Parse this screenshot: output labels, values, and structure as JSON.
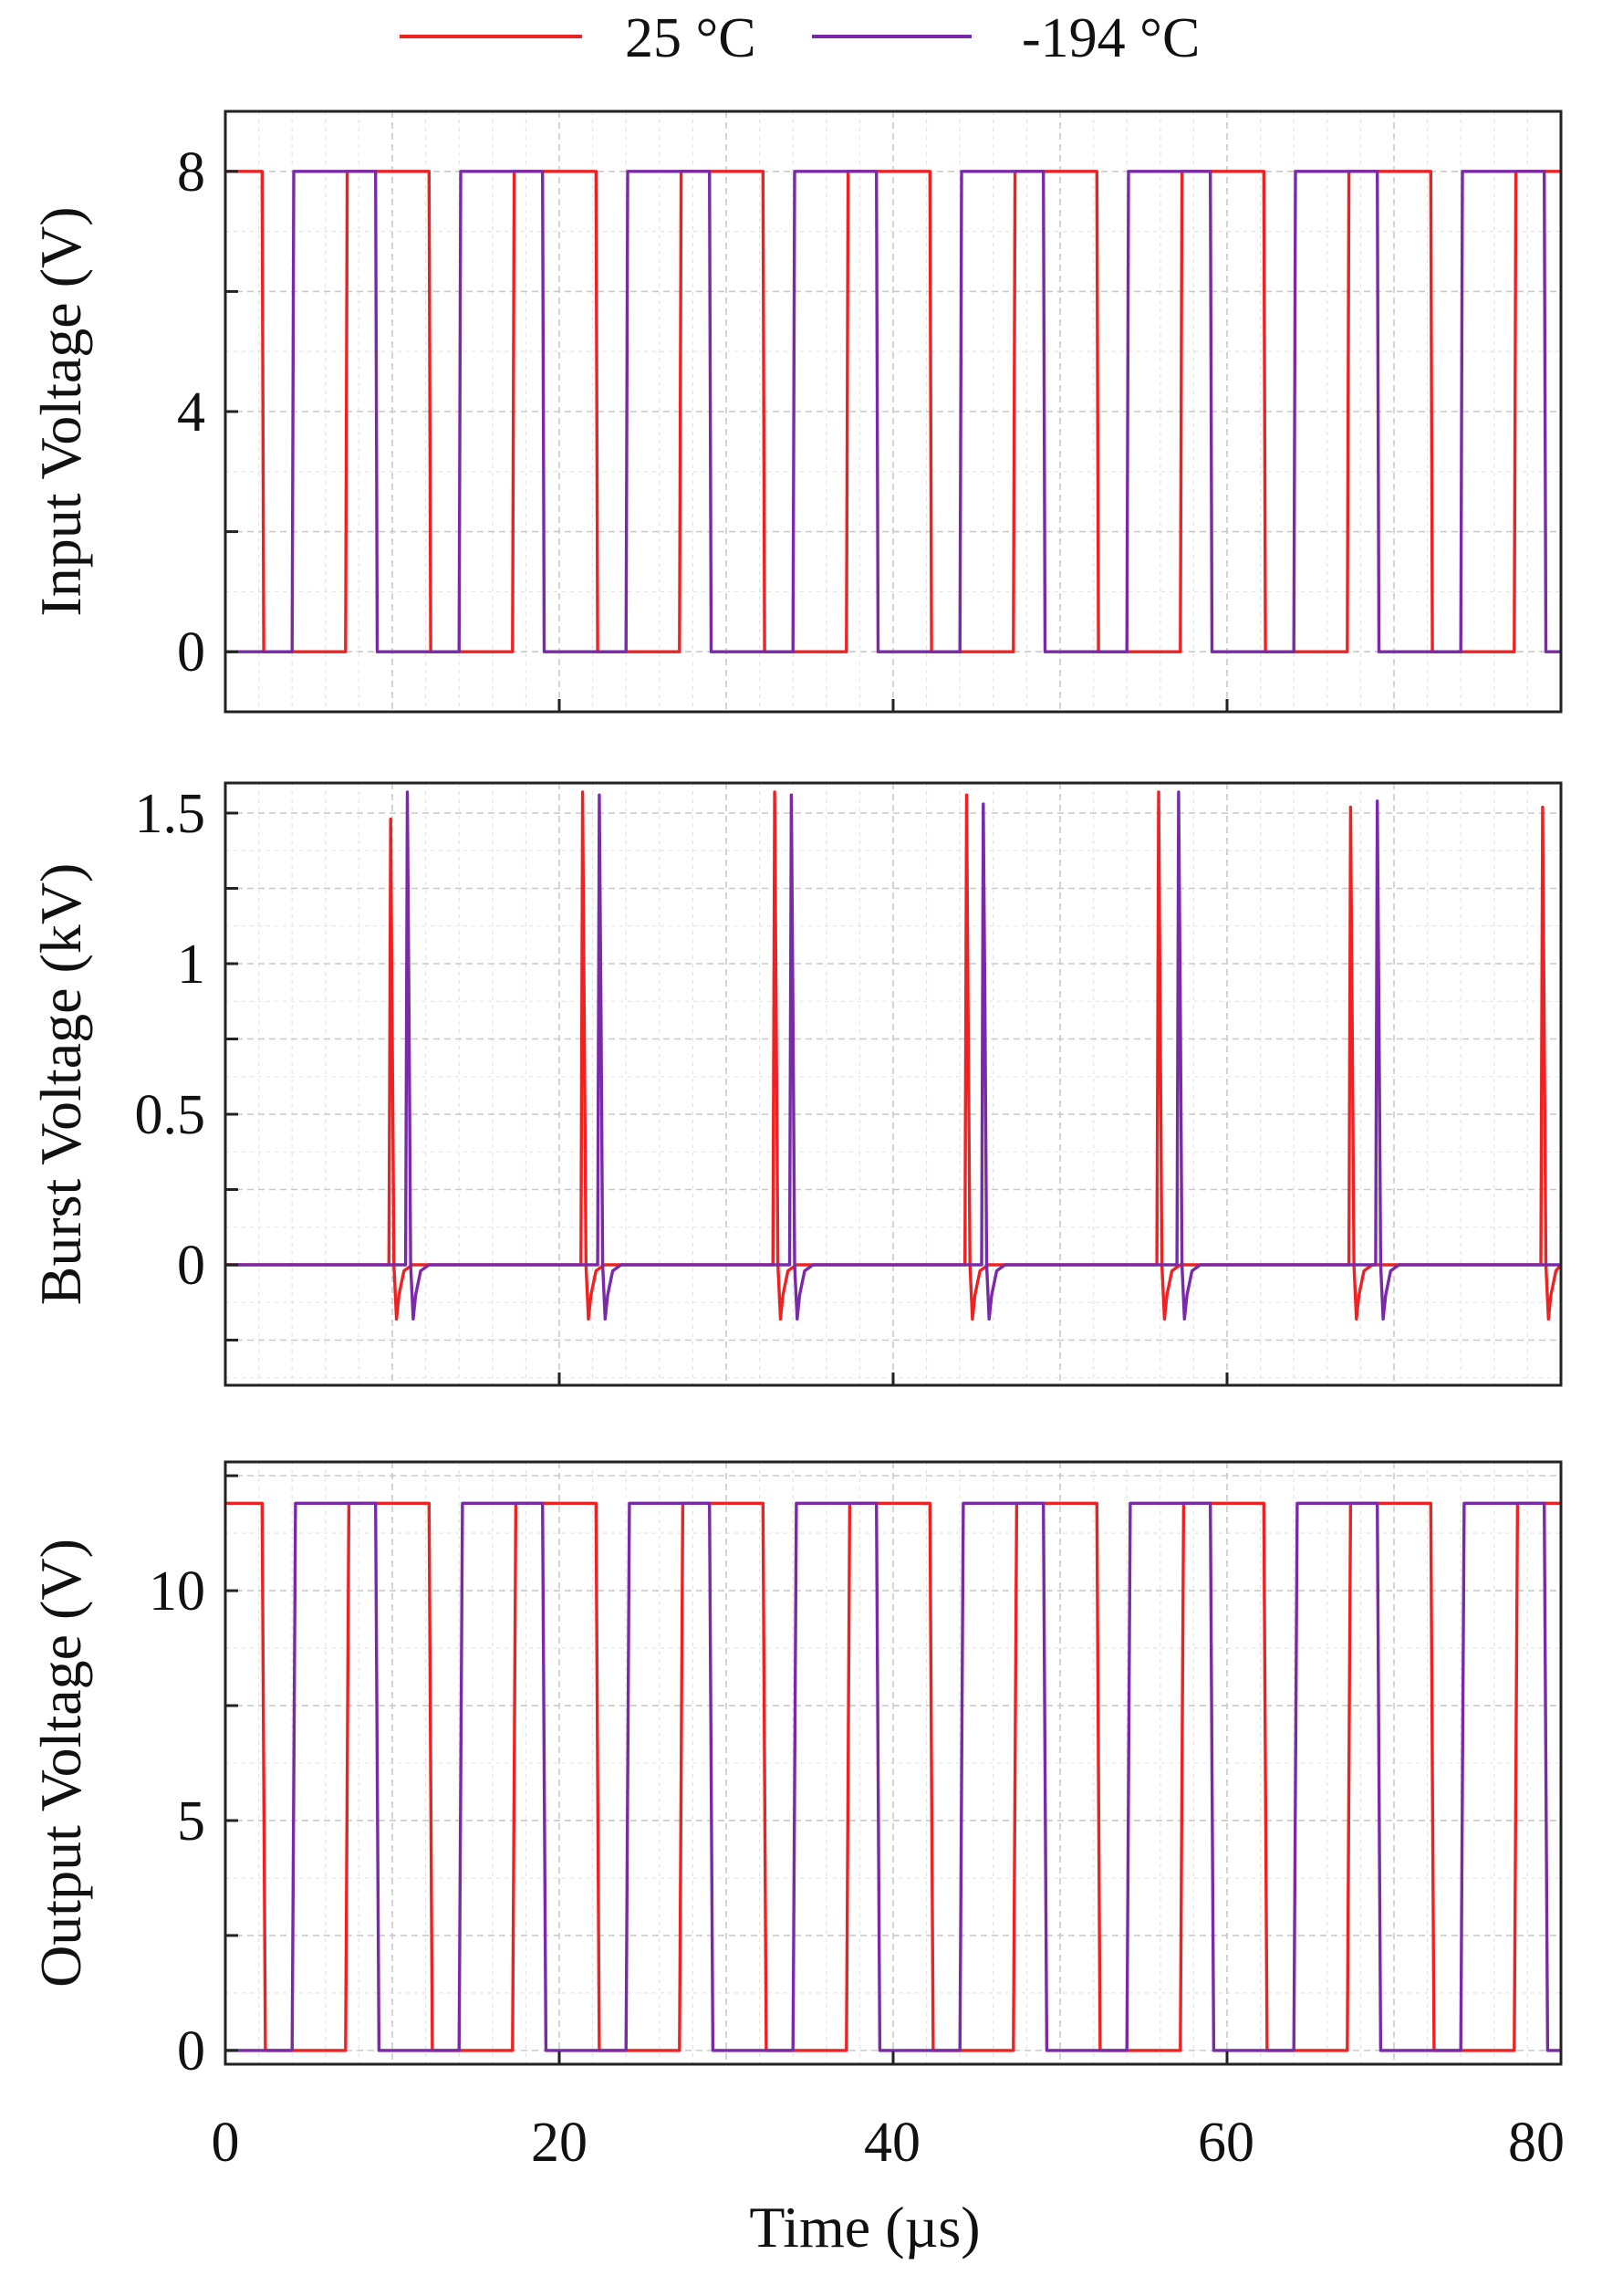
{
  "legend": {
    "items": [
      {
        "label": "25 °C",
        "color": "#ee2222"
      },
      {
        "label": "-194 °C",
        "color": "#7a2aa8"
      }
    ]
  },
  "x_axis": {
    "label": "Time (µs)",
    "ticks": [
      "0",
      "20",
      "40",
      "60",
      "80"
    ]
  },
  "chart_data": [
    {
      "type": "line",
      "ylabel": "Input Voltage (V)",
      "xlabel": "Time (µs)",
      "xlim": [
        0,
        80
      ],
      "ylim": [
        -1,
        9
      ],
      "yticks": [
        0,
        4,
        8
      ],
      "ytick_labels": [
        "0",
        "4",
        "8"
      ],
      "grid": true,
      "legend_position": "top",
      "series": [
        {
          "name": "25 °C",
          "color": "#ee2222",
          "x": [
            0,
            2.2,
            2.3,
            7.2,
            7.3,
            12.2,
            12.3,
            17.2,
            17.3,
            22.2,
            22.3,
            27.2,
            27.3,
            32.2,
            32.3,
            37.2,
            37.3,
            42.2,
            42.3,
            47.2,
            47.3,
            52.2,
            52.3,
            57.2,
            57.3,
            62.2,
            62.3,
            67.2,
            67.3,
            72.2,
            72.3,
            77.2,
            77.3,
            80
          ],
          "y": [
            8,
            8,
            0,
            0,
            8,
            8,
            0,
            0,
            8,
            8,
            0,
            0,
            8,
            8,
            0,
            0,
            8,
            8,
            0,
            0,
            8,
            8,
            0,
            0,
            8,
            8,
            0,
            0,
            8,
            8,
            0,
            0,
            8,
            8
          ]
        },
        {
          "name": "-194 °C",
          "color": "#7a2aa8",
          "x": [
            0,
            4.0,
            4.1,
            9.0,
            9.1,
            14.0,
            14.1,
            19.0,
            19.1,
            24.0,
            24.1,
            29.0,
            29.1,
            34.0,
            34.1,
            39.0,
            39.1,
            44.0,
            44.1,
            49.0,
            49.1,
            54.0,
            54.1,
            59.0,
            59.1,
            64.0,
            64.1,
            69.0,
            69.1,
            74.0,
            74.1,
            79.0,
            79.1,
            80
          ],
          "y": [
            0,
            0,
            8,
            8,
            0,
            0,
            8,
            8,
            0,
            0,
            8,
            8,
            0,
            0,
            8,
            8,
            0,
            0,
            8,
            8,
            0,
            0,
            8,
            8,
            0,
            0,
            8,
            8,
            0,
            0,
            8,
            8,
            0,
            0
          ]
        }
      ]
    },
    {
      "type": "line",
      "ylabel": "Burst Voltage (kV)",
      "xlabel": "Time (µs)",
      "xlim": [
        0,
        80
      ],
      "ylim": [
        -0.4,
        1.6
      ],
      "yticks": [
        0,
        0.5,
        1,
        1.5
      ],
      "ytick_labels": [
        "0",
        "0.5",
        "1",
        "1.5"
      ],
      "grid": true,
      "series": [
        {
          "name": "25 °C",
          "color": "#ee2222",
          "x": [
            0,
            9.8,
            9.9,
            10.0,
            10.1,
            10.25,
            10.4,
            10.7,
            11.2,
            21.3,
            21.4,
            21.5,
            21.6,
            21.75,
            21.9,
            22.2,
            22.7,
            32.8,
            32.9,
            33.0,
            33.1,
            33.25,
            33.4,
            33.7,
            34.2,
            44.3,
            44.4,
            44.5,
            44.6,
            44.75,
            44.9,
            45.2,
            45.7,
            55.8,
            55.9,
            56.0,
            56.1,
            56.25,
            56.4,
            56.7,
            57.2,
            67.3,
            67.4,
            67.5,
            67.6,
            67.75,
            67.9,
            68.2,
            68.7,
            78.8,
            78.9,
            79.0,
            79.1,
            79.25,
            79.4,
            79.7,
            80
          ],
          "y": [
            0,
            0,
            1.48,
            0.75,
            0.0,
            -0.18,
            -0.1,
            -0.02,
            0,
            0,
            1.57,
            0.78,
            0.0,
            -0.18,
            -0.1,
            -0.02,
            0,
            0,
            1.57,
            0.78,
            0.0,
            -0.18,
            -0.1,
            -0.02,
            0,
            0,
            1.56,
            0.78,
            0.0,
            -0.18,
            -0.1,
            -0.02,
            0,
            0,
            1.57,
            0.78,
            0.0,
            -0.18,
            -0.1,
            -0.02,
            0,
            0,
            1.52,
            0.76,
            0.0,
            -0.18,
            -0.1,
            -0.02,
            0,
            0,
            1.52,
            0.76,
            0.0,
            -0.18,
            -0.1,
            -0.02,
            0
          ]
        },
        {
          "name": "-194 °C",
          "color": "#7a2aa8",
          "x": [
            0,
            10.8,
            10.9,
            11.0,
            11.1,
            11.25,
            11.4,
            11.7,
            12.2,
            22.3,
            22.4,
            22.5,
            22.6,
            22.75,
            22.9,
            23.2,
            23.7,
            33.8,
            33.9,
            34.0,
            34.1,
            34.25,
            34.4,
            34.7,
            35.2,
            45.3,
            45.4,
            45.5,
            45.6,
            45.75,
            45.9,
            46.2,
            46.7,
            57.0,
            57.1,
            57.2,
            57.3,
            57.45,
            57.6,
            57.9,
            58.4,
            68.9,
            69.0,
            69.1,
            69.2,
            69.35,
            69.5,
            69.8,
            70.3,
            80
          ],
          "y": [
            0,
            0,
            1.57,
            0.85,
            0.0,
            -0.18,
            -0.1,
            -0.02,
            0,
            0,
            1.56,
            0.84,
            0.0,
            -0.18,
            -0.1,
            -0.02,
            0,
            0,
            1.56,
            0.84,
            0.0,
            -0.18,
            -0.1,
            -0.02,
            0,
            0,
            1.53,
            0.83,
            0.0,
            -0.18,
            -0.1,
            -0.02,
            0,
            0,
            1.57,
            0.85,
            0.0,
            -0.18,
            -0.1,
            -0.02,
            0,
            0,
            1.54,
            0.84,
            0.0,
            -0.18,
            -0.1,
            -0.02,
            0,
            0
          ]
        }
      ]
    },
    {
      "type": "line",
      "ylabel": "Output Voltage (V)",
      "xlabel": "Time (µs)",
      "xlim": [
        0,
        80
      ],
      "ylim": [
        -0.3,
        12.8
      ],
      "yticks": [
        0,
        5,
        10
      ],
      "ytick_labels": [
        "0",
        "5",
        "10"
      ],
      "grid": true,
      "series": [
        {
          "name": "25 °C",
          "color": "#ee2222",
          "x": [
            0,
            2.2,
            2.4,
            7.2,
            7.4,
            12.2,
            12.4,
            17.2,
            17.4,
            22.2,
            22.4,
            27.2,
            27.4,
            32.2,
            32.4,
            37.2,
            37.4,
            42.2,
            42.4,
            47.2,
            47.4,
            52.2,
            52.4,
            57.2,
            57.4,
            62.2,
            62.4,
            67.2,
            67.4,
            72.2,
            72.4,
            77.2,
            77.4,
            80
          ],
          "y": [
            11.9,
            11.9,
            0,
            0,
            11.9,
            11.9,
            0,
            0,
            11.9,
            11.9,
            0,
            0,
            11.9,
            11.9,
            0,
            0,
            11.9,
            11.9,
            0,
            0,
            11.9,
            11.9,
            0,
            0,
            11.9,
            11.9,
            0,
            0,
            11.9,
            11.9,
            0,
            0,
            11.9,
            11.9
          ]
        },
        {
          "name": "-194 °C",
          "color": "#7a2aa8",
          "x": [
            0,
            4.0,
            4.2,
            9.0,
            9.2,
            14.0,
            14.2,
            19.0,
            19.2,
            24.0,
            24.2,
            29.0,
            29.2,
            34.0,
            34.2,
            39.0,
            39.2,
            44.0,
            44.2,
            49.0,
            49.2,
            54.0,
            54.2,
            59.0,
            59.2,
            64.0,
            64.2,
            69.0,
            69.2,
            74.0,
            74.2,
            79.0,
            79.2,
            80
          ],
          "y": [
            0,
            0,
            11.9,
            11.9,
            0,
            0,
            11.9,
            11.9,
            0,
            0,
            11.9,
            11.9,
            0,
            0,
            11.9,
            11.9,
            0,
            0,
            11.9,
            11.9,
            0,
            0,
            11.9,
            11.9,
            0,
            0,
            11.9,
            11.9,
            0,
            0,
            11.9,
            11.9,
            0,
            0
          ]
        }
      ]
    }
  ]
}
